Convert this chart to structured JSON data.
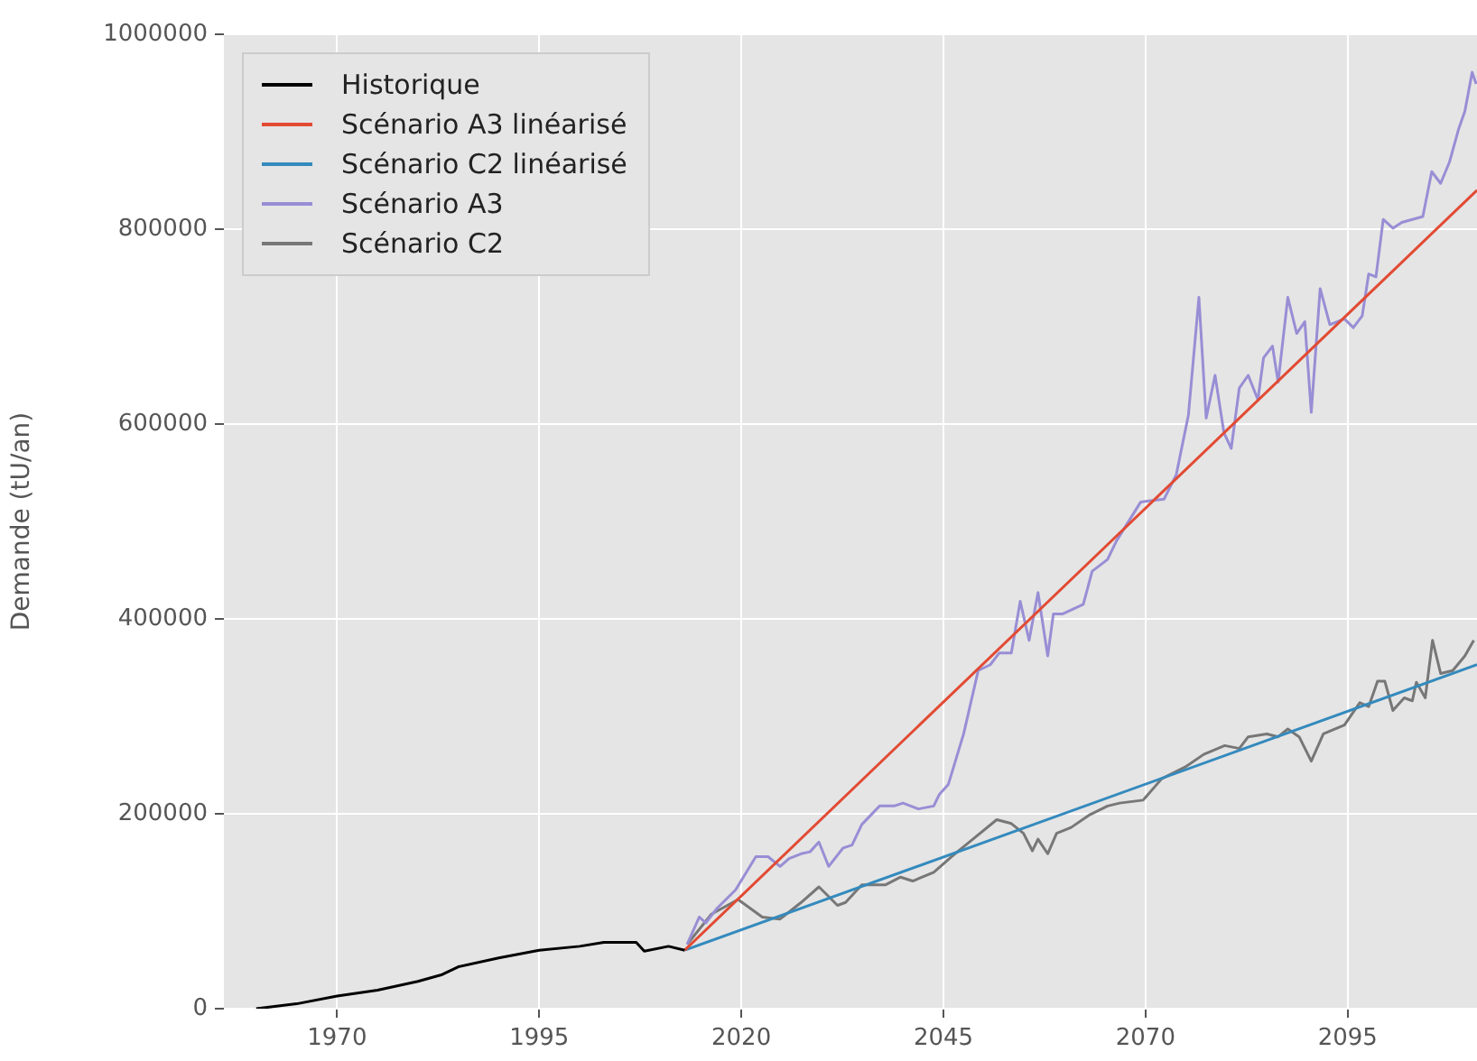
{
  "chart_data": {
    "type": "line",
    "ylabel": "Demande (tU/an)",
    "xlim": [
      1956,
      2111
    ],
    "xticks": [
      1970,
      1995,
      2020,
      2045,
      2070,
      2095
    ],
    "ylim": [
      0,
      1000000
    ],
    "yticks": [
      0,
      200000,
      400000,
      600000,
      800000,
      1000000
    ],
    "grid": true,
    "legend": "top left",
    "marker": "none",
    "line_style": "solid",
    "series": [
      {
        "name": "Historique",
        "color": "#000000",
        "x": [
          1960,
          1965,
          1970,
          1975,
          1980,
          1983,
          1985,
          1990,
          1995,
          2000,
          2003,
          2007,
          2008,
          2011,
          2013
        ],
        "values": [
          0,
          5000,
          13000,
          19000,
          28000,
          35000,
          43000,
          52000,
          60000,
          64000,
          68000,
          68000,
          59000,
          64000,
          60000
        ]
      },
      {
        "name": "Scénario A3 linéarisé",
        "color": "#e24a33",
        "x": [
          2013,
          2111
        ],
        "values": [
          60000,
          840000
        ]
      },
      {
        "name": "Scénario C2 linéarisé",
        "color": "#348abd",
        "x": [
          2013,
          2111
        ],
        "values": [
          60000,
          353000
        ]
      },
      {
        "name": "Scénario A3",
        "color": "#988ed5",
        "x": [
          2013.3,
          2014.8,
          2015.6,
          2017,
          2019.3,
          2021.8,
          2023.3,
          2024.8,
          2025.9,
          2027.4,
          2028.5,
          2029.6,
          2030.8,
          2032.6,
          2033.7,
          2034.9,
          2037.1,
          2038.9,
          2040,
          2041.9,
          2043.8,
          2044.5,
          2045.6,
          2047.5,
          2049.3,
          2050.8,
          2051.9,
          2053.4,
          2054.5,
          2055.6,
          2056.7,
          2057.9,
          2058.6,
          2059.7,
          2062.3,
          2063.4,
          2065.3,
          2066.4,
          2069.4,
          2072.3,
          2073.8,
          2075.3,
          2076.6,
          2077.5,
          2078.6,
          2079.7,
          2080.6,
          2081.6,
          2082.7,
          2083.9,
          2084.6,
          2085.7,
          2086.4,
          2087.6,
          2088.7,
          2089.7,
          2090.5,
          2091.6,
          2092.8,
          2094.6,
          2095.7,
          2096.8,
          2097.6,
          2098.5,
          2099.4,
          2100.6,
          2101.7,
          2104.3,
          2105.4,
          2106.5,
          2107.6,
          2108.7,
          2109.5,
          2110.4,
          2110.9
        ],
        "values": [
          66000,
          94000,
          88000,
          103000,
          122000,
          156000,
          156000,
          146000,
          154000,
          159000,
          161000,
          171000,
          146000,
          165000,
          168000,
          189000,
          208000,
          208000,
          211000,
          205000,
          208000,
          220000,
          230000,
          282000,
          347000,
          353000,
          365000,
          365000,
          418000,
          378000,
          427000,
          362000,
          405000,
          405000,
          415000,
          449000,
          461000,
          480000,
          520000,
          523000,
          548000,
          609000,
          730000,
          606000,
          650000,
          591000,
          575000,
          637000,
          650000,
          625000,
          668000,
          680000,
          643000,
          730000,
          693000,
          705000,
          612000,
          739000,
          702000,
          708000,
          699000,
          711000,
          754000,
          751000,
          810000,
          801000,
          807000,
          813000,
          859000,
          847000,
          869000,
          902000,
          921000,
          961000,
          949000
        ]
      },
      {
        "name": "Scénario C2",
        "color": "#777777",
        "x": [
          2013.3,
          2016.3,
          2019.6,
          2022.6,
          2024.8,
          2027.4,
          2029.6,
          2031.9,
          2032.9,
          2034.9,
          2037.8,
          2039.7,
          2041.2,
          2043.8,
          2046,
          2048.2,
          2051.6,
          2053.4,
          2054.9,
          2056,
          2056.7,
          2057.9,
          2059,
          2060.8,
          2063.1,
          2065.3,
          2066.8,
          2069.7,
          2072,
          2074.9,
          2077.2,
          2079.8,
          2081.6,
          2082.7,
          2085,
          2086.4,
          2087.6,
          2089,
          2090.5,
          2092,
          2094.6,
          2096.5,
          2097.6,
          2098.7,
          2099.6,
          2100.6,
          2102,
          2103,
          2103.5,
          2104.6,
          2105.5,
          2106.5,
          2108,
          2109.5,
          2110.6
        ],
        "values": [
          66000,
          97000,
          112000,
          94000,
          92000,
          109000,
          125000,
          106000,
          109000,
          127000,
          127000,
          135000,
          131000,
          140000,
          156000,
          171000,
          194000,
          190000,
          180000,
          162000,
          174000,
          159000,
          180000,
          186000,
          199000,
          208000,
          211000,
          214000,
          236000,
          248000,
          261000,
          270000,
          267000,
          279000,
          282000,
          279000,
          287000,
          279000,
          254000,
          282000,
          291000,
          314000,
          310000,
          336000,
          336000,
          306000,
          319000,
          316000,
          335000,
          319000,
          378000,
          344000,
          347000,
          362000,
          378000
        ]
      }
    ]
  }
}
